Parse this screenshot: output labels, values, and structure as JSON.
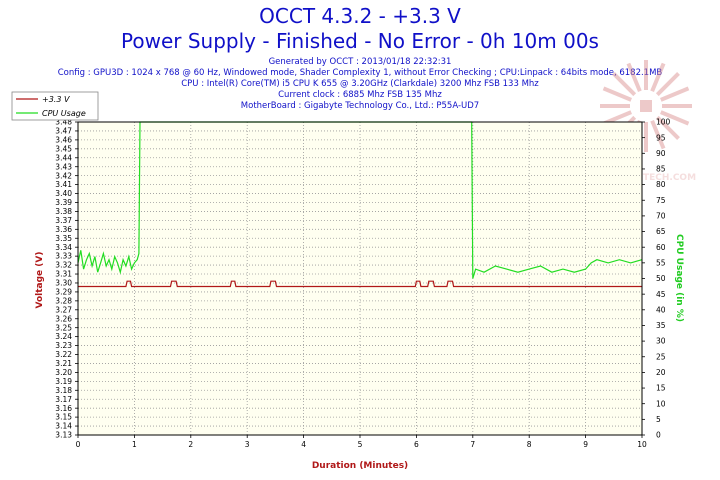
{
  "header": {
    "title": "OCCT 4.3.2 - +3.3 V",
    "subtitle": "Power Supply - Finished - No Error - 0h 10m 00s",
    "info_lines": [
      "Generated by OCCT : 2013/01/18 22:32:31",
      "Config : GPU3D : 1024 x 768 @ 60 Hz, Windowed mode, Shader Complexity 1, without Error Checking ; CPU:Linpack : 64bits mode, 6182.1MB",
      "CPU : Intel(R) Core(TM) i5 CPU K 655 @ 3.20GHz (Clarkdale) 3200 Mhz FSB 133 Mhz",
      "Current clock : 6885 Mhz FSB 135 Mhz",
      "MotherBoard : Gigabyte Technology Co., Ltd.: P55A-UD7"
    ]
  },
  "watermark": {
    "text": "VMODTECH.COM"
  },
  "colors": {
    "voltage": "#b01818",
    "cpu": "#22dd22",
    "plot_bg": "#fffff0",
    "grid": "#9a9a9a",
    "title": "#1010c8"
  },
  "chart_data": {
    "type": "line",
    "xlabel": "Duration (Minutes)",
    "ylabel": "Voltage (V)",
    "y2label": "CPU Usage (in %)",
    "xlim": [
      0,
      10
    ],
    "ylim": [
      3.13,
      3.48
    ],
    "y2lim": [
      0,
      100
    ],
    "x_ticks": [
      0,
      1,
      2,
      3,
      4,
      5,
      6,
      7,
      8,
      9,
      10
    ],
    "y_ticks": [
      3.13,
      3.14,
      3.15,
      3.16,
      3.17,
      3.18,
      3.19,
      3.2,
      3.21,
      3.22,
      3.23,
      3.24,
      3.25,
      3.26,
      3.27,
      3.28,
      3.29,
      3.3,
      3.31,
      3.32,
      3.33,
      3.34,
      3.35,
      3.36,
      3.37,
      3.38,
      3.39,
      3.4,
      3.41,
      3.42,
      3.43,
      3.44,
      3.45,
      3.46,
      3.47,
      3.48
    ],
    "y2_ticks": [
      0,
      5,
      10,
      15,
      20,
      25,
      30,
      35,
      40,
      45,
      50,
      55,
      60,
      65,
      70,
      75,
      80,
      85,
      90,
      95,
      100
    ],
    "grid": true,
    "legend_position": "top-left",
    "series": [
      {
        "name": "+3.3 V",
        "axis": "left",
        "x": [
          0,
          0.85,
          0.87,
          0.93,
          0.95,
          1.64,
          1.66,
          1.74,
          1.76,
          2.7,
          2.72,
          2.78,
          2.8,
          3.4,
          3.42,
          3.5,
          3.52,
          5.98,
          6.0,
          6.06,
          6.08,
          6.2,
          6.22,
          6.3,
          6.32,
          6.54,
          6.56,
          6.64,
          6.66,
          10
        ],
        "y": [
          3.296,
          3.296,
          3.302,
          3.302,
          3.296,
          3.296,
          3.302,
          3.302,
          3.296,
          3.296,
          3.302,
          3.302,
          3.296,
          3.296,
          3.302,
          3.302,
          3.296,
          3.296,
          3.302,
          3.302,
          3.296,
          3.296,
          3.302,
          3.302,
          3.296,
          3.296,
          3.302,
          3.302,
          3.296,
          3.296
        ]
      },
      {
        "name": "CPU Usage",
        "axis": "right",
        "x": [
          0,
          0.05,
          0.1,
          0.15,
          0.2,
          0.25,
          0.3,
          0.35,
          0.4,
          0.45,
          0.5,
          0.55,
          0.6,
          0.65,
          0.7,
          0.75,
          0.8,
          0.85,
          0.9,
          0.95,
          1.0,
          1.05,
          1.08,
          1.1,
          6.98,
          7.0,
          7.05,
          7.2,
          7.4,
          7.6,
          7.8,
          8.0,
          8.2,
          8.4,
          8.6,
          8.8,
          9.0,
          9.1,
          9.2,
          9.4,
          9.6,
          9.8,
          10
        ],
        "y": [
          55,
          59,
          53,
          56,
          58,
          54,
          57,
          52,
          55,
          58,
          54,
          56,
          53,
          57,
          55,
          52,
          56,
          54,
          57,
          53,
          55,
          56,
          58,
          100,
          100,
          50,
          53,
          52,
          54,
          53,
          52,
          53,
          54,
          52,
          53,
          52,
          53,
          55,
          56,
          55,
          56,
          55,
          56
        ]
      }
    ]
  }
}
